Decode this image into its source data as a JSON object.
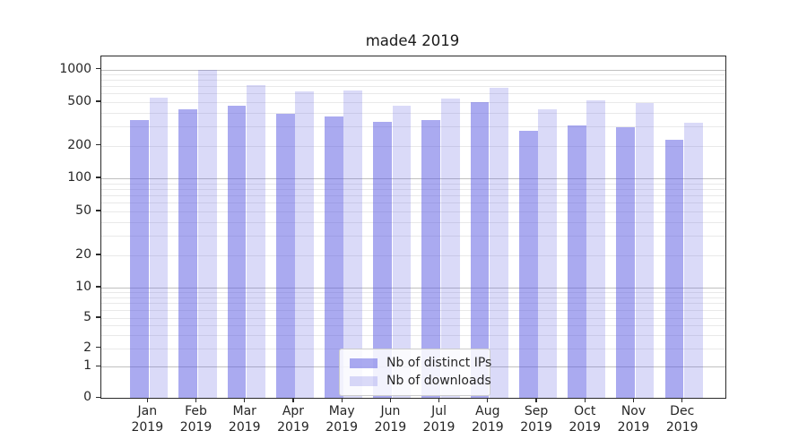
{
  "chart_data": {
    "type": "bar",
    "title": "made4 2019",
    "categories": [
      "Jan",
      "Feb",
      "Mar",
      "Apr",
      "May",
      "Jun",
      "Jul",
      "Aug",
      "Sep",
      "Oct",
      "Nov",
      "Dec"
    ],
    "category_year": "2019",
    "series": [
      {
        "name": "Nb of distinct IPs",
        "color": "rgba(85,85,225,0.5)",
        "blended_hex": "#aaaaf0",
        "values": [
          340,
          425,
          465,
          390,
          365,
          330,
          340,
          500,
          270,
          305,
          295,
          225
        ]
      },
      {
        "name": "Nb of downloads",
        "color": "rgba(85,85,225,0.22)",
        "blended_hex": "#d9d9fa",
        "values": [
          545,
          980,
          715,
          620,
          640,
          465,
          535,
          675,
          425,
          520,
          485,
          320
        ]
      }
    ],
    "yticks": [
      0,
      1,
      2,
      5,
      10,
      20,
      50,
      100,
      200,
      500,
      1000
    ],
    "yscale": "symlog",
    "ylim": [
      0,
      1320
    ],
    "xlabel": "",
    "ylabel": "",
    "grid": "both",
    "legend_position": "lower-center",
    "colors": {
      "text": "#262626",
      "spine": "#2a2a2a",
      "grid_major": "#c0c0c0",
      "grid_minor": "#e9e9e9",
      "background": "#ffffff"
    }
  }
}
